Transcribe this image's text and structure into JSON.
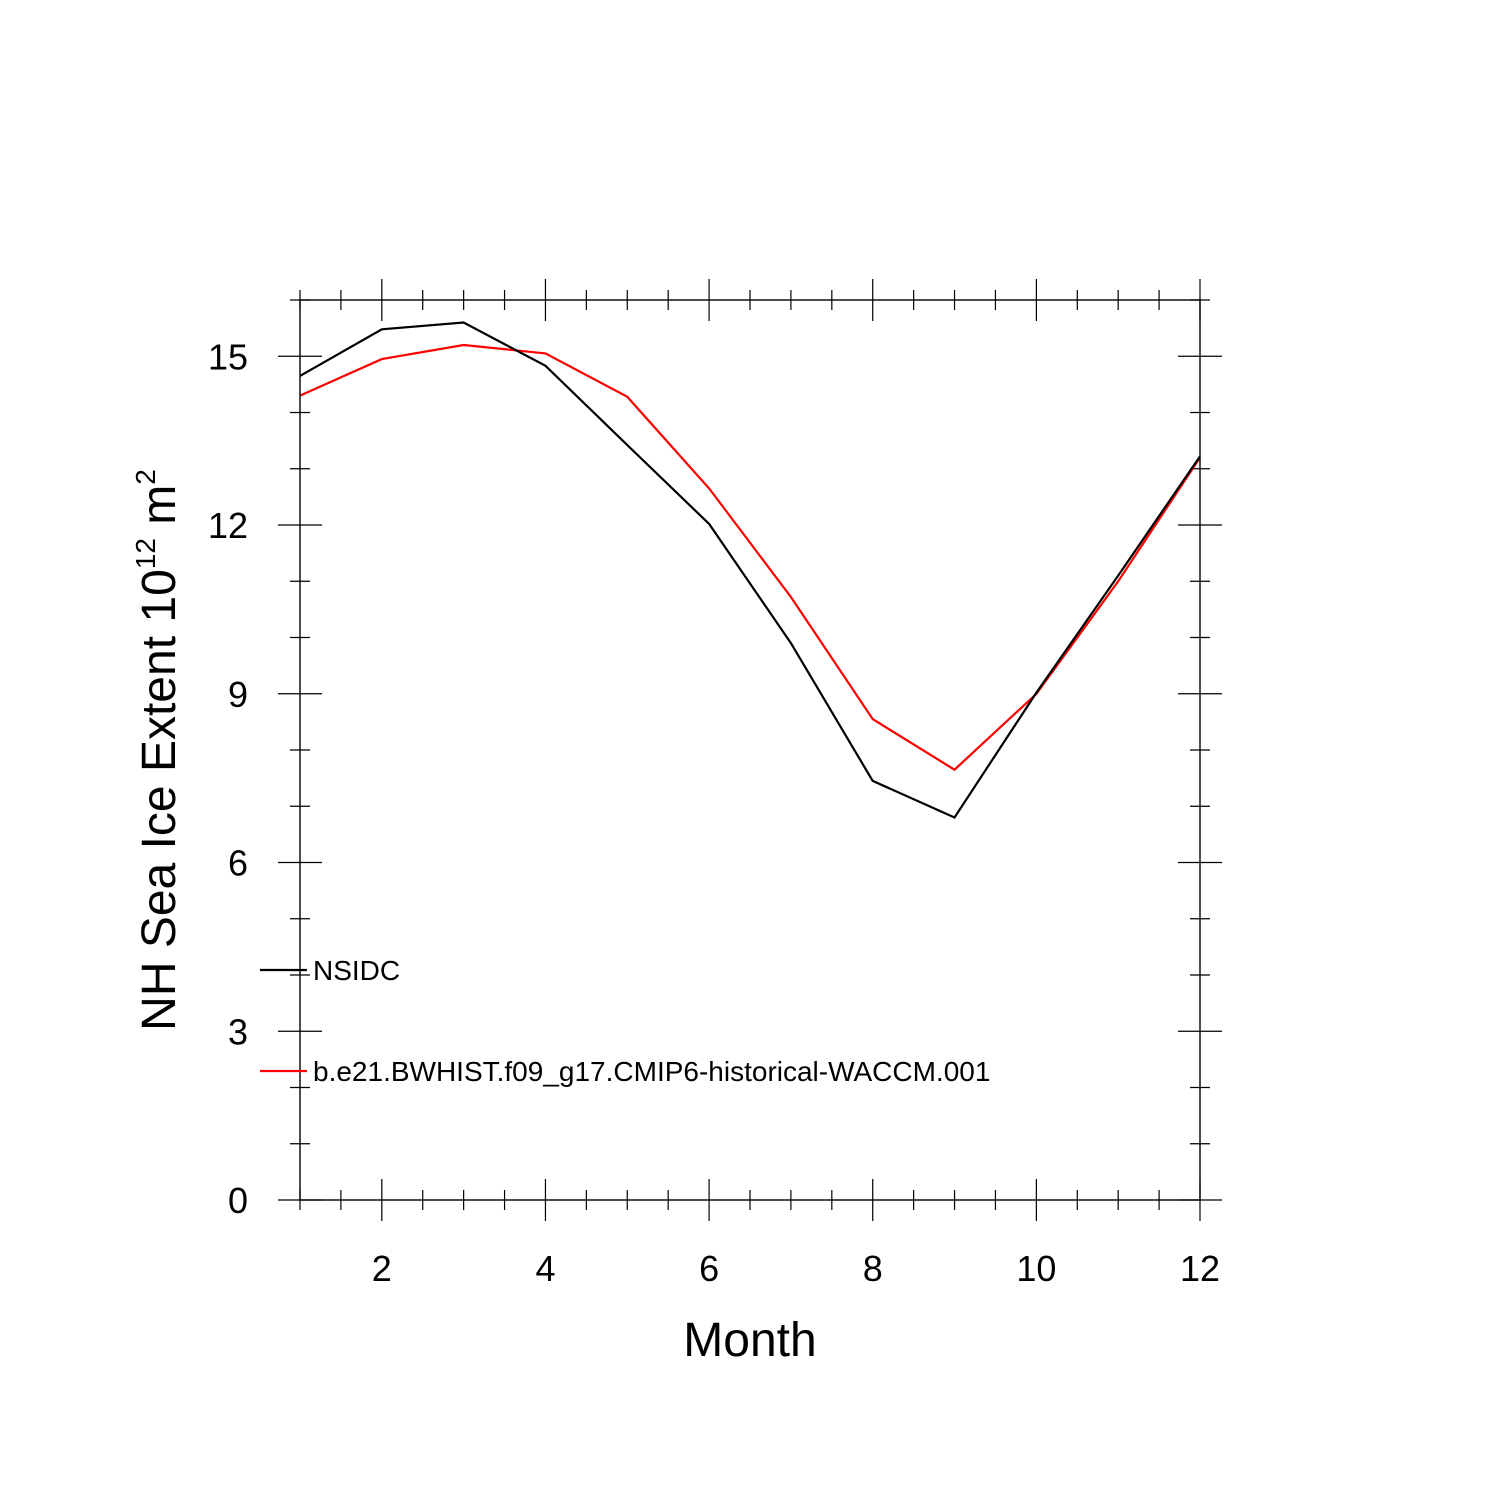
{
  "chart_data": {
    "type": "line",
    "title": "",
    "xlabel": "Month",
    "ylabel": {
      "base": "NH Sea Ice Extent 10",
      "exponent": "12",
      "unit": " m",
      "unit_exponent": "2"
    },
    "xlim": [
      1,
      12
    ],
    "ylim": [
      0,
      16
    ],
    "x_ticks": [
      2,
      4,
      6,
      8,
      10,
      12
    ],
    "y_ticks": [
      0,
      3,
      6,
      9,
      12,
      15
    ],
    "x_ticks_labels": [
      "2",
      "4",
      "6",
      "8",
      "10",
      "12"
    ],
    "y_ticks_labels": [
      "0",
      "3",
      "6",
      "9",
      "12",
      "15"
    ],
    "x": [
      1,
      2,
      3,
      4,
      5,
      6,
      7,
      8,
      9,
      10,
      11,
      12
    ],
    "series": [
      {
        "name": "NSIDC",
        "color": "#000000",
        "values": [
          14.65,
          15.48,
          15.6,
          14.83,
          13.42,
          12.02,
          9.9,
          7.45,
          6.8,
          9.02,
          11.1,
          13.22
        ]
      },
      {
        "name": "b.e21.BWHIST.f09_g17.CMIP6-historical-WACCM.001",
        "color": "#ff0000",
        "values": [
          14.3,
          14.95,
          15.2,
          15.05,
          14.28,
          12.65,
          10.72,
          8.55,
          7.65,
          9.0,
          11.0,
          13.2
        ]
      }
    ],
    "legend": {
      "placement": "bottom-left"
    },
    "grid": false
  }
}
